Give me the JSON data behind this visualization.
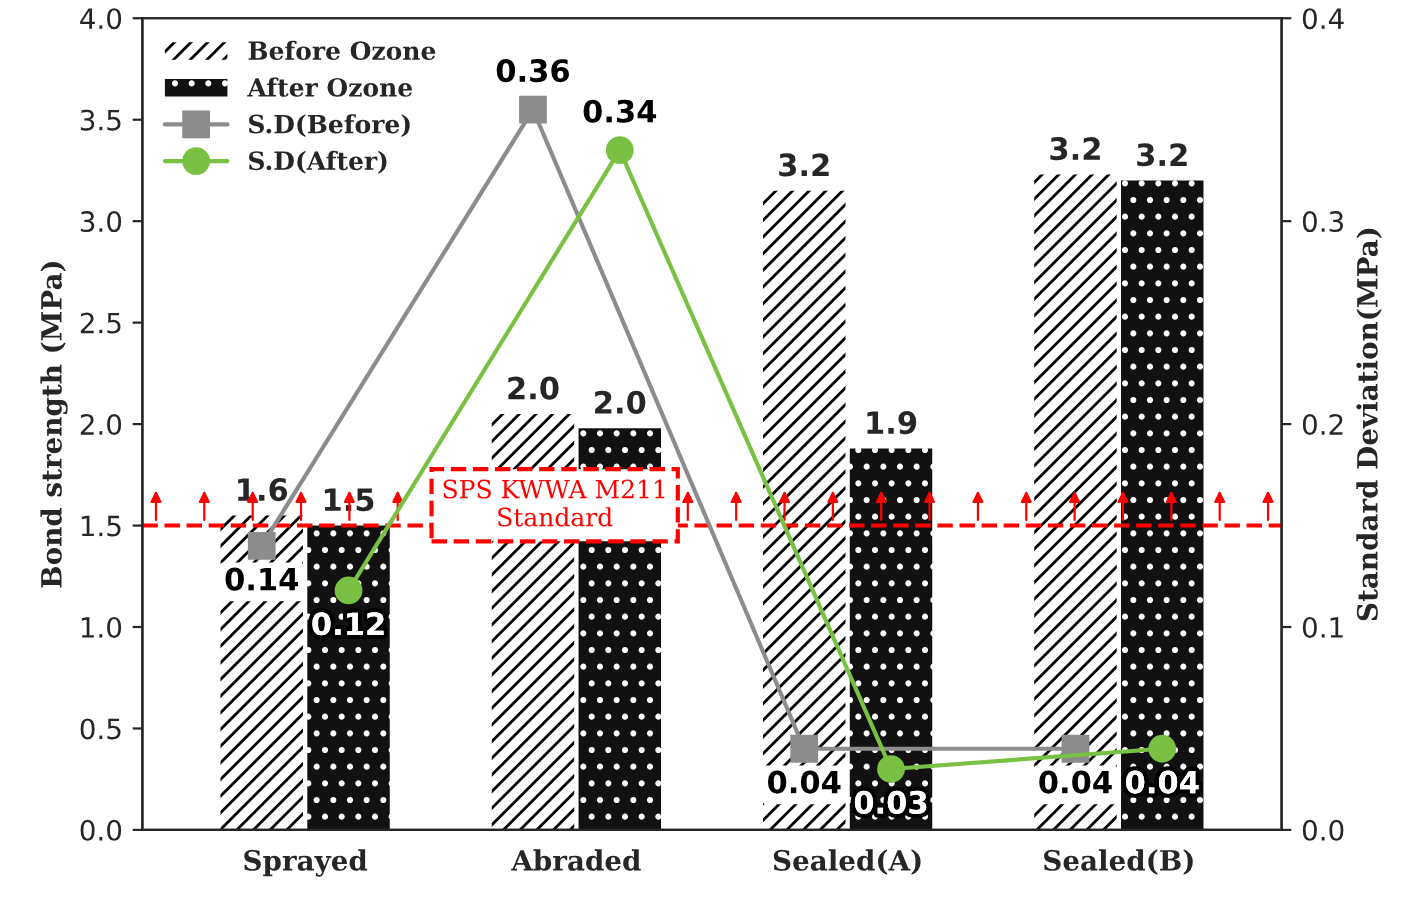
{
  "chart_data": {
    "type": "bar",
    "categories": [
      "Sprayed",
      "Abraded",
      "Sealed(A)",
      "Sealed(B)"
    ],
    "ylabel": "Bond strength (MPa)",
    "y2label": "Standard Deviation(MPa)",
    "ylim": [
      0,
      4
    ],
    "yticks": [
      {
        "value": 0,
        "label": "0.0"
      },
      {
        "value": 0.5,
        "label": "0.5"
      },
      {
        "value": 1,
        "label": "1.0"
      },
      {
        "value": 1.5,
        "label": "1.5"
      },
      {
        "value": 2,
        "label": "2.0"
      },
      {
        "value": 2.5,
        "label": "2.5"
      },
      {
        "value": 3,
        "label": "3.0"
      },
      {
        "value": 3.5,
        "label": "3.5"
      },
      {
        "value": 4,
        "label": "4.0"
      }
    ],
    "y2lim": [
      0,
      0.4
    ],
    "y2ticks": [
      {
        "value": 0,
        "label": "0.0"
      },
      {
        "value": 0.1,
        "label": "0.1"
      },
      {
        "value": 0.2,
        "label": "0.2"
      },
      {
        "value": 0.3,
        "label": "0.3"
      },
      {
        "value": 0.4,
        "label": "0.4"
      }
    ],
    "series": [
      {
        "name": "Before Ozone",
        "color": "#ffffff",
        "values": [
          1.55,
          2.05,
          3.15,
          3.23
        ],
        "value_labels": [
          "1.6",
          "2.0",
          "3.2",
          "3.2"
        ]
      },
      {
        "name": "After Ozone",
        "color": "#111111",
        "values": [
          1.5,
          1.98,
          1.88,
          3.2
        ],
        "value_labels": [
          "1.5",
          "2.0",
          "1.9",
          "3.2"
        ]
      },
      {
        "name": "S.D(Before)",
        "type": "line",
        "axis": "y2",
        "marker": "square",
        "color": "#8c8c8c",
        "values": [
          0.14,
          0.355,
          0.04,
          0.04
        ],
        "value_labels": [
          "0.14",
          "0.36",
          "0.04",
          "0.04"
        ]
      },
      {
        "name": "S.D(After)",
        "type": "line",
        "axis": "y2",
        "marker": "circle",
        "color": "#7ac143",
        "values": [
          0.118,
          0.335,
          0.03,
          0.04
        ],
        "value_labels": [
          "0.12",
          "0.34",
          "0.03",
          "0.04"
        ]
      }
    ],
    "ref_lines": [
      {
        "axis": "y",
        "value": 1.5,
        "label": "SPS KWWA M211\nStandard",
        "color": "#ff0000",
        "line_style": "dashed"
      }
    ],
    "legend": "top left",
    "grid": false
  }
}
